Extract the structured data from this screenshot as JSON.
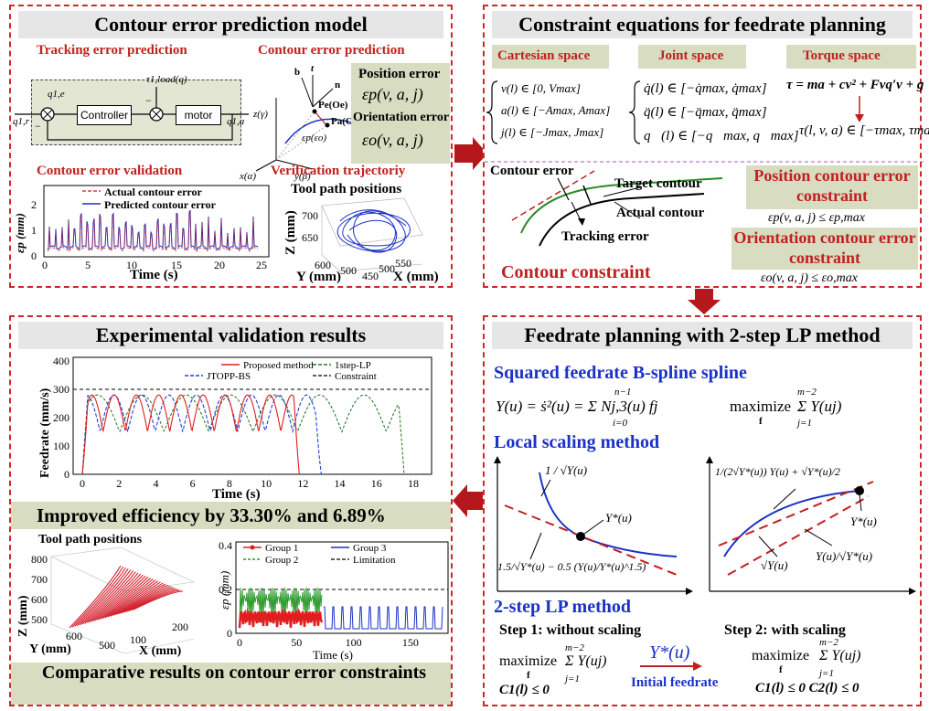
{
  "panel1": {
    "title": "Contour error prediction model",
    "tracking_heading": "Tracking error prediction",
    "contour_heading": "Contour error prediction",
    "block_controller": "Controller",
    "block_motor": "motor",
    "sig_in": "q1,r",
    "sig_err": "q1,e",
    "sig_load": "τ1,load(q)",
    "sig_out": "q1,a",
    "minus1": "−",
    "minus2": "−",
    "vec_b": "b",
    "vec_t": "t",
    "vec_n": "n",
    "pt_pe": "Pe(Oe)",
    "pt_pa": "Pa(Oa)",
    "eps_label": "εp(εo)",
    "axis_z": "z(γ)",
    "axis_x": "x(α)",
    "axis_y": "y(β)",
    "pos_err_label": "Position  error",
    "pos_err_eq": "εp(v, a, j)",
    "ori_err_label": "Orientation  error",
    "ori_err_eq": "εo(v, a, j)",
    "validation_heading": "Contour error validation",
    "verification_heading": "Verification trajectoriy",
    "tool_path_title": "Tool path positions",
    "legend_actual": "Actual contour error",
    "legend_pred": "Predicted contour error",
    "ylab": "εp (mm)",
    "xlab": "Time (s)",
    "xticks": [
      "0",
      "5",
      "10",
      "15",
      "20",
      "25"
    ],
    "yticks": [
      "0",
      "1",
      "2"
    ],
    "p3d_z": "Z (mm)",
    "p3d_y": "Y (mm)",
    "p3d_x": "X (mm)",
    "p3d_zticks": [
      "700",
      "650"
    ],
    "p3d_yticks": [
      "600",
      "500"
    ],
    "p3d_xticks": [
      "550",
      "450"
    ],
    "p3d_xtick_mid": "500",
    "colors": {
      "accent_red": "#c0201f",
      "blue": "#1b31c8",
      "tan": "#d8dcc0"
    }
  },
  "panel2": {
    "title": "Constraint equations for feedrate planning",
    "cart_label": "Cartesian space",
    "joint_label": "Joint space",
    "torque_label": "Torque space",
    "cart_eqs": [
      "v(l) ∈ [0, Vmax]",
      "a(l) ∈ [−Amax, Amax]",
      "j(l) ∈ [−Jmax, Jmax]"
    ],
    "joint_eqs": [
      "q̇(l) ∈ [−q̇max, q̇max]",
      "q̈(l) ∈ [−q̈max, q̈max]",
      "q⃛(l) ∈ [−q⃛max, q⃛max]"
    ],
    "torque_eq1": "τ = ma + cv² + Fvq′v + g",
    "torque_eq2": "τ(l, v, a) ∈ [−τmax, τmax]",
    "contour_error_lbl": "Contour error",
    "target_lbl": "Target contour",
    "actual_lbl": "Actual contour",
    "tracking_lbl": "Tracking error",
    "contour_constraint": "Contour constraint",
    "pos_constraint": "Position contour error constraint",
    "pos_constraint_eq": "εp(v, a, j) ≤ εp,max",
    "ori_constraint": "Orientation contour error constraint",
    "ori_constraint_eq": "εo(v, a, j) ≤ εo,max"
  },
  "panel3": {
    "title": "Experimental validation results",
    "legend": [
      "Proposed method",
      "1step-LP",
      "JTOPP-BS",
      "Constraint"
    ],
    "ylab": "Feedrate (mm/s)",
    "xlab": "Time (s)",
    "yticks": [
      "0",
      "100",
      "200",
      "300",
      "400"
    ],
    "xticks": [
      "0",
      "2",
      "4",
      "6",
      "8",
      "10",
      "12",
      "14",
      "16",
      "18"
    ],
    "improved": "Improved efficiency by 33.30% and 6.89%",
    "tool_path_title": "Tool path positions",
    "p3d_zticks": [
      "800",
      "700",
      "600",
      "500"
    ],
    "p3d_yticks": [
      "600",
      "500"
    ],
    "p3d_xticks": [
      "100",
      "200"
    ],
    "p3d_z": "Z (mm)",
    "p3d_y": "Y (mm)",
    "p3d_x": "X (mm)",
    "ep_legend": [
      "Group 1",
      "Group 2",
      "Group 3",
      "Limitation"
    ],
    "ep_ylab": "εp (mm)",
    "ep_xlab": "Time (s)",
    "ep_yticks": [
      "0",
      "0.2",
      "0.4"
    ],
    "ep_xticks": [
      "0",
      "50",
      "100",
      "150"
    ],
    "comparative": "Comparative results on contour error constraints"
  },
  "panel4": {
    "title": "Feedrate planning with 2-step LP method",
    "bspline_heading": "Squared feedrate B-spline spline",
    "bspline_eq": "Y(u) = ṡ²(u) = Σ Nj,3(u) fj",
    "bspline_sum_top": "n−1",
    "bspline_sum_bot": "i=0",
    "maximize": "maximize",
    "max_sub": "f",
    "max_expr": "Σ Y(uj)",
    "max_sum_top": "m−2",
    "max_sum_bot": "j=1",
    "local_heading": "Local scaling method",
    "frac_left_top": "1 / √Y(u)",
    "frac_left_bottom": "1.5/√Y*(u) − 0.5 (Y(u)/Y*(u)^1.5)",
    "ystar": "Y*(u)",
    "frac_right_top": "1/(2√Y*(u)) Y(u) + √Y*(u)/2",
    "frac_right_b1": "√Y(u)",
    "frac_right_b2": "Y(u)/√Y*(u)",
    "lp_heading": "2-step LP method",
    "step1": "Step 1:  without  scaling",
    "step2": "Step 2:  with  scaling",
    "c1": "C1(l) ≤ 0",
    "c12": "C1(l) ≤ 0  C2(l) ≤ 0",
    "initial_feedrate": "Initial feedrate",
    "ystar_arrow": "Y*(u)"
  }
}
